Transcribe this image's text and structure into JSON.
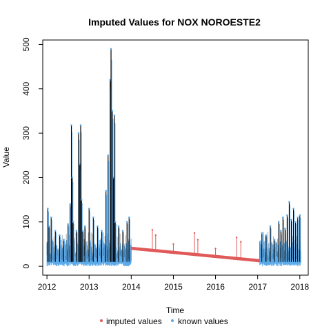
{
  "chart_data": {
    "type": "scatter",
    "title": "Imputed Values for  NOX NOROESTE2",
    "xlabel": "Time",
    "ylabel": "Value",
    "xlim": [
      2011.9,
      2018.2
    ],
    "ylim": [
      -20,
      510
    ],
    "x_ticks": [
      2012,
      2013,
      2014,
      2015,
      2016,
      2017,
      2018
    ],
    "x_tick_labels": [
      "2012",
      "2013",
      "2014",
      "2015",
      "2016",
      "2017",
      "2018"
    ],
    "y_ticks": [
      0,
      100,
      200,
      300,
      400,
      500
    ],
    "y_tick_labels": [
      "0",
      "100",
      "200",
      "300",
      "400",
      "500"
    ],
    "legend": {
      "position": "bottom",
      "items": [
        {
          "label": "imputed values",
          "color": "#e05a5a"
        },
        {
          "label": "known values",
          "color": "#5aa8e8"
        }
      ]
    },
    "colors": {
      "line": "#000000",
      "imputed": "#e05a5a",
      "known": "#5aa8e8"
    },
    "known_segments": [
      [
        2012.0,
        2014.0
      ],
      [
        2017.05,
        2018.03
      ]
    ],
    "imputed_segment": {
      "start": [
        2014.0,
        40
      ],
      "end": [
        2017.05,
        12
      ]
    },
    "series": [
      {
        "name": "known values",
        "x": [
          2012.02,
          2012.05,
          2012.1,
          2012.2,
          2012.3,
          2012.4,
          2012.5,
          2012.55,
          2012.58,
          2012.6,
          2012.62,
          2012.7,
          2012.75,
          2012.78,
          2012.8,
          2012.82,
          2012.85,
          2012.9,
          2013.0,
          2013.1,
          2013.2,
          2013.3,
          2013.4,
          2013.45,
          2013.5,
          2013.52,
          2013.55,
          2013.58,
          2013.6,
          2013.62,
          2013.7,
          2013.8,
          2013.9,
          2013.95,
          2017.1,
          2017.2,
          2017.3,
          2017.4,
          2017.5,
          2017.55,
          2017.6,
          2017.65,
          2017.7,
          2017.75,
          2017.8,
          2017.85,
          2017.9,
          2017.95,
          2018.0
        ],
        "y": [
          130,
          90,
          110,
          80,
          70,
          60,
          95,
          140,
          318,
          200,
          100,
          80,
          300,
          230,
          318,
          150,
          80,
          90,
          130,
          110,
          90,
          80,
          170,
          250,
          420,
          490,
          350,
          200,
          340,
          100,
          90,
          80,
          100,
          110,
          75,
          70,
          90,
          60,
          100,
          80,
          110,
          85,
          115,
          145,
          105,
          130,
          100,
          110,
          115
        ]
      },
      {
        "name": "imputed values",
        "x": [
          2014.5,
          2014.58,
          2015.0,
          2015.5,
          2015.58,
          2016.0,
          2016.5,
          2016.6
        ],
        "y": [
          82,
          70,
          50,
          75,
          60,
          40,
          65,
          55
        ]
      }
    ]
  }
}
